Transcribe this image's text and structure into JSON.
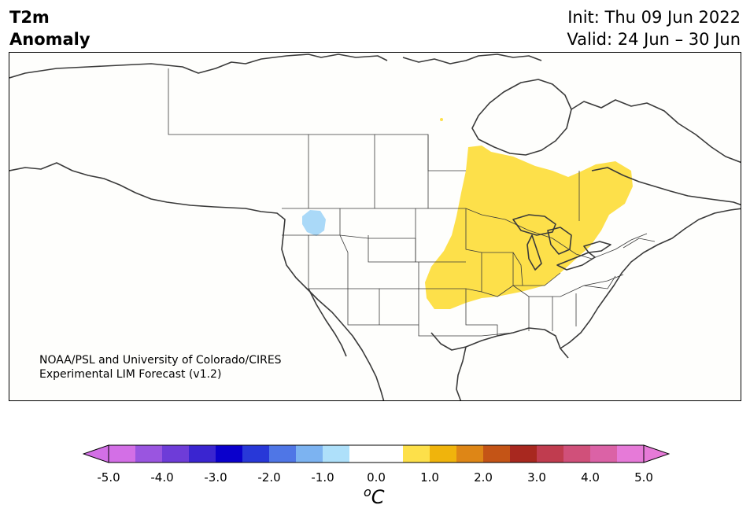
{
  "header": {
    "title_line1": "T2m",
    "title_line2": "Anomaly",
    "init_text": "Init: Thu 09 Jun 2022",
    "valid_text": "Valid: 24 Jun – 30 Jun"
  },
  "map": {
    "credit_line1": "NOAA/PSL and University of Colorado/CIRES",
    "credit_line2": "Experimental LIM Forecast (v1.2)",
    "warm_anomaly_color": "#fde04a",
    "cool_anomaly_color": "#aad9f8",
    "regions": [
      {
        "name": "warm-anomaly-central-us",
        "level": "0.5 to 1.0"
      },
      {
        "name": "cool-anomaly-pacific-nw",
        "level": "-0.5 to -1.0"
      }
    ]
  },
  "colorbar": {
    "ticks": [
      "-5.0",
      "-4.0",
      "-3.0",
      "-2.0",
      "-1.0",
      "0.0",
      "1.0",
      "2.0",
      "3.0",
      "4.0",
      "5.0"
    ],
    "colors": [
      "#d36fe6",
      "#9a55e0",
      "#6e3cd8",
      "#3a25d0",
      "#0a00cc",
      "#2838d8",
      "#4f76e6",
      "#7cb3f1",
      "#aee0fa",
      "#ffffff",
      "#ffffff",
      "#fde04a",
      "#f0b40c",
      "#de8616",
      "#c45416",
      "#a8281f",
      "#c03c4f",
      "#d0507a",
      "#db62a6",
      "#e67ad8"
    ],
    "min_color": "#d36fe6",
    "max_color": "#e67ad8",
    "unit_base": "C",
    "unit_sup": "o"
  }
}
